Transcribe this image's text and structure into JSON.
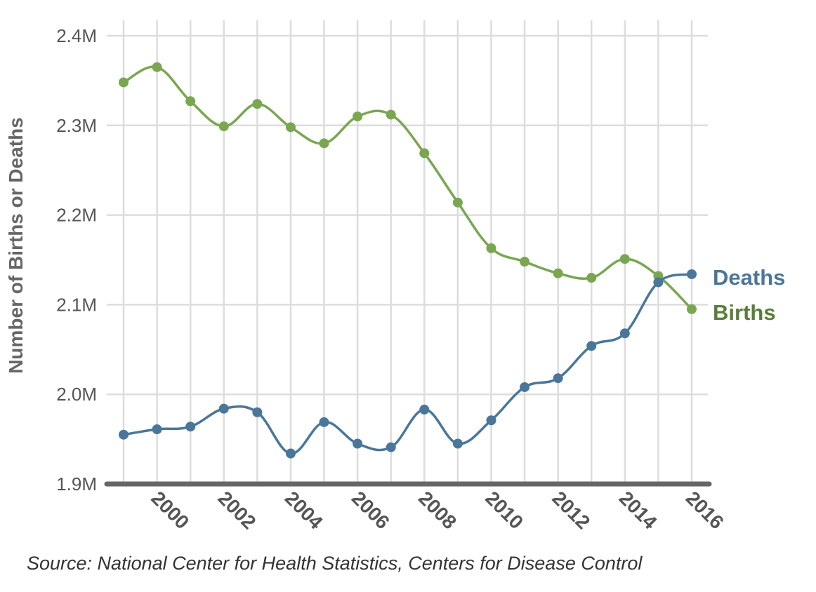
{
  "chart_data": {
    "type": "line",
    "title": "",
    "xlabel": "",
    "ylabel": "Number of Births or Deaths",
    "ylim": [
      1900000,
      2400000
    ],
    "xlim": [
      1999,
      2016
    ],
    "yticks": [
      1900000,
      2000000,
      2100000,
      2200000,
      2300000,
      2400000
    ],
    "ytick_labels": [
      "1.9M",
      "2.0M",
      "2.1M",
      "2.2M",
      "2.3M",
      "2.4M"
    ],
    "xticks": [
      2000,
      2002,
      2004,
      2006,
      2008,
      2010,
      2012,
      2014,
      2016
    ],
    "xtick_labels": [
      "2000",
      "2002",
      "2004",
      "2006",
      "2008",
      "2010",
      "2012",
      "2014",
      "2016"
    ],
    "grid": true,
    "legend": "direct-labels-right",
    "x": [
      1999,
      2000,
      2001,
      2002,
      2003,
      2004,
      2005,
      2006,
      2007,
      2008,
      2009,
      2010,
      2011,
      2012,
      2013,
      2014,
      2015,
      2016
    ],
    "series": [
      {
        "name": "Births",
        "color": "#7aa652",
        "label_color": "#5a7d3a",
        "values": [
          2348000,
          2365000,
          2327000,
          2299000,
          2324000,
          2298000,
          2280000,
          2310000,
          2312000,
          2269000,
          2214000,
          2163000,
          2148000,
          2135000,
          2130000,
          2151000,
          2132000,
          2095000
        ]
      },
      {
        "name": "Deaths",
        "color": "#4a7699",
        "label_color": "#4a7699",
        "values": [
          1955000,
          1961000,
          1964000,
          1984000,
          1980000,
          1934000,
          1969000,
          1945000,
          1941000,
          1983000,
          1945000,
          1971000,
          2008000,
          2018000,
          2054000,
          2068000,
          2125000,
          2134000
        ]
      }
    ]
  },
  "source": "Source: National Center for Health Statistics, Centers for Disease Control"
}
